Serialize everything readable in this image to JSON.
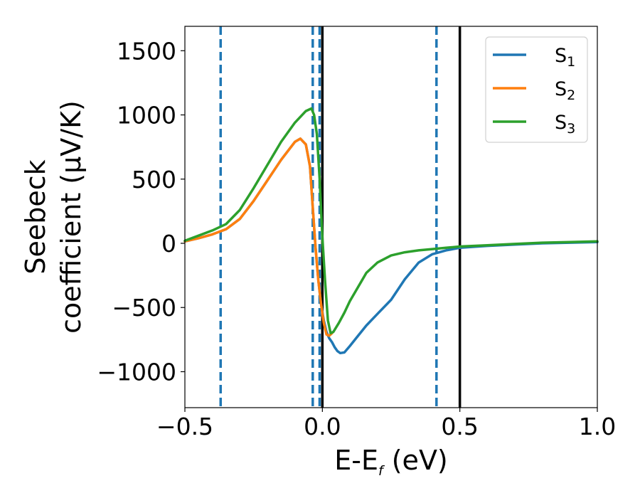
{
  "chart_data": {
    "type": "line",
    "xlabel_main": "E-E",
    "xlabel_sub": "f",
    "xlabel_unit": " (eV)",
    "ylabel_line1": "Seebeck",
    "ylabel_line2": "coefficient  (μV/K)",
    "xlim": [
      -0.5,
      1.0
    ],
    "ylim": [
      -1280,
      1690
    ],
    "xticks": [
      -0.5,
      0.0,
      0.5,
      1.0
    ],
    "xtick_labels": [
      "−0.5",
      "0.0",
      "0.5",
      "1.0"
    ],
    "yticks": [
      -1000,
      -500,
      0,
      500,
      1000,
      1500
    ],
    "ytick_labels": [
      "−1000",
      "−500",
      "0",
      "500",
      "1000",
      "1500"
    ],
    "legend_position": "top-right",
    "series": [
      {
        "name": "S",
        "name_sub": "1",
        "color": "#1f77b4",
        "x": [
          -0.5,
          -0.45,
          -0.4,
          -0.35,
          -0.3,
          -0.25,
          -0.2,
          -0.15,
          -0.1,
          -0.08,
          -0.06,
          -0.045,
          -0.035,
          -0.025,
          -0.015,
          -0.005,
          0.005,
          0.015,
          0.025,
          0.035,
          0.045,
          0.055,
          0.065,
          0.08,
          0.1,
          0.13,
          0.16,
          0.2,
          0.25,
          0.3,
          0.35,
          0.4,
          0.45,
          0.5,
          0.6,
          0.7,
          0.8,
          0.9,
          1.0
        ],
        "y": [
          15,
          40,
          70,
          110,
          190,
          330,
          490,
          650,
          790,
          815,
          770,
          600,
          280,
          -30,
          -280,
          -470,
          -600,
          -690,
          -740,
          -770,
          -810,
          -840,
          -855,
          -850,
          -800,
          -720,
          -640,
          -550,
          -440,
          -280,
          -150,
          -85,
          -55,
          -35,
          -20,
          -10,
          0,
          5,
          10
        ]
      },
      {
        "name": "S",
        "name_sub": "2",
        "color": "#ff7f0e",
        "x": [
          -0.5,
          -0.45,
          -0.4,
          -0.35,
          -0.3,
          -0.25,
          -0.2,
          -0.15,
          -0.1,
          -0.08,
          -0.06,
          -0.045,
          -0.035,
          -0.025,
          -0.015,
          -0.005,
          0.005,
          0.015,
          0.025,
          0.035
        ],
        "y": [
          15,
          40,
          70,
          110,
          190,
          330,
          490,
          650,
          790,
          815,
          770,
          600,
          280,
          -30,
          -280,
          -470,
          -620,
          -710,
          -720,
          -700
        ]
      },
      {
        "name": "S",
        "name_sub": "3",
        "color": "#2ca02c",
        "x": [
          -0.5,
          -0.45,
          -0.4,
          -0.35,
          -0.3,
          -0.25,
          -0.2,
          -0.15,
          -0.1,
          -0.06,
          -0.04,
          -0.03,
          -0.02,
          -0.01,
          0.0,
          0.01,
          0.02,
          0.03,
          0.04,
          0.06,
          0.08,
          0.1,
          0.13,
          0.16,
          0.2,
          0.25,
          0.3,
          0.35,
          0.4,
          0.45,
          0.5,
          0.6,
          0.7,
          0.8,
          0.9,
          1.0
        ],
        "y": [
          20,
          60,
          100,
          150,
          260,
          430,
          610,
          790,
          940,
          1030,
          1050,
          1000,
          850,
          500,
          50,
          -300,
          -600,
          -700,
          -690,
          -620,
          -540,
          -450,
          -340,
          -230,
          -150,
          -95,
          -70,
          -55,
          -45,
          -35,
          -25,
          -15,
          -5,
          5,
          10,
          15
        ]
      }
    ],
    "vlines": [
      {
        "x": -0.37,
        "style": "dashed",
        "color": "#1f77b4"
      },
      {
        "x": -0.035,
        "style": "dashed",
        "color": "#1f77b4"
      },
      {
        "x": -0.01,
        "style": "dashed",
        "color": "#1f77b4"
      },
      {
        "x": 0.0,
        "style": "solid",
        "color": "#000000"
      },
      {
        "x": 0.415,
        "style": "dashed",
        "color": "#1f77b4"
      },
      {
        "x": 0.5,
        "style": "solid",
        "color": "#000000"
      }
    ]
  }
}
